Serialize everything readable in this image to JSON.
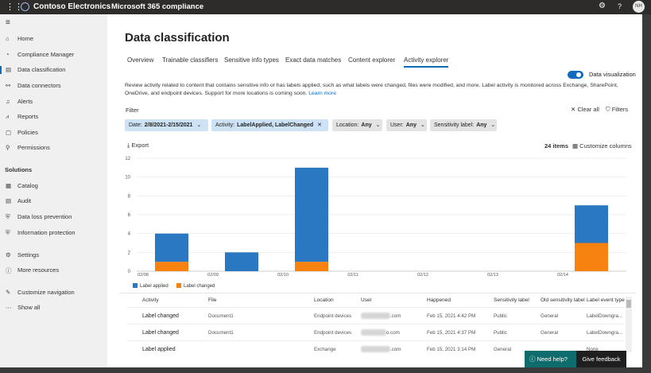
{
  "header": {
    "brand": "Contoso Electronics",
    "app": "Microsoft 365 compliance",
    "help": "?",
    "avatar": "NH"
  },
  "nav": {
    "items": [
      "Home",
      "Compliance Manager",
      "Data classification",
      "Data connectors",
      "Alerts",
      "Reports",
      "Policies",
      "Permissions"
    ],
    "section": "Solutions",
    "solution_items": [
      "Catalog",
      "Audit",
      "Data loss prevention",
      "Information protection"
    ],
    "bottom_items": [
      "Settings",
      "More resources"
    ],
    "footer_items": [
      "Customize navigation",
      "Show all"
    ]
  },
  "page": {
    "title": "Data classification",
    "tabs": [
      "Overview",
      "Trainable classifiers",
      "Sensitive info types",
      "Exact data matches",
      "Content explorer",
      "Activity explorer"
    ],
    "toggle_label": "Data visualization",
    "description": "Review activity related to content that contains sensitive info or has labels applied, such as what labels were changed, files were modified, and more. Label activity is monitored across Exchange, SharePoint, OneDrive, and endpoint devices. Support for more locations is coming soon.",
    "link": "Learn more",
    "filter_label": "Filter",
    "clear_all": "Clear all",
    "filters": "Filters",
    "chips": [
      {
        "label": "Date:",
        "value": "2/8/2021-2/15/2021"
      },
      {
        "label": "Activity:",
        "value": "LabelApplied, LabelChanged"
      },
      {
        "label": "Location:",
        "value": "Any"
      },
      {
        "label": "User:",
        "value": "Any"
      },
      {
        "label": "Sensitivity label:",
        "value": "Any"
      }
    ],
    "export": "Export",
    "item_count": "24 items",
    "customize": "Customize columns"
  },
  "chart": {
    "type": "bar",
    "stacked": true,
    "categories": [
      "02/08",
      "02/09",
      "02/10",
      "02/11",
      "02/12",
      "02/13",
      "02/14"
    ],
    "series": [
      {
        "name": "Label applied",
        "color": "#2a78c2",
        "values": [
          3,
          2,
          10,
          0,
          0,
          0,
          4
        ]
      },
      {
        "name": "Label changed",
        "color": "#f7820f",
        "values": [
          1,
          0,
          1,
          0,
          0,
          0,
          3
        ]
      }
    ],
    "ylim": [
      0,
      12
    ],
    "yticks": [
      0,
      2,
      4,
      6,
      8,
      10,
      12
    ],
    "grid": true
  },
  "table": {
    "columns": [
      "Activity",
      "File",
      "Location",
      "User",
      "Happened",
      "Sensitivity label",
      "Old sensitivity label",
      "Label event type"
    ],
    "rows": [
      [
        "Label changed",
        "Document1",
        "Endpoint devices",
        ".com",
        "Feb 15, 2021 4:42 PM",
        "Public",
        "General",
        "LabelDowngra..."
      ],
      [
        "Label changed",
        "Document1",
        "Endpoint devices",
        "o.com",
        "Feb 15, 2021 4:37 PM",
        "Public",
        "General",
        "LabelDowngra..."
      ],
      [
        "Label applied",
        "",
        "Exchange",
        ".com",
        "Feb 15, 2021 3:14 PM",
        "General",
        "",
        "None"
      ]
    ]
  },
  "help": {
    "need_help": "Need help?",
    "feedback": "Give feedback"
  }
}
